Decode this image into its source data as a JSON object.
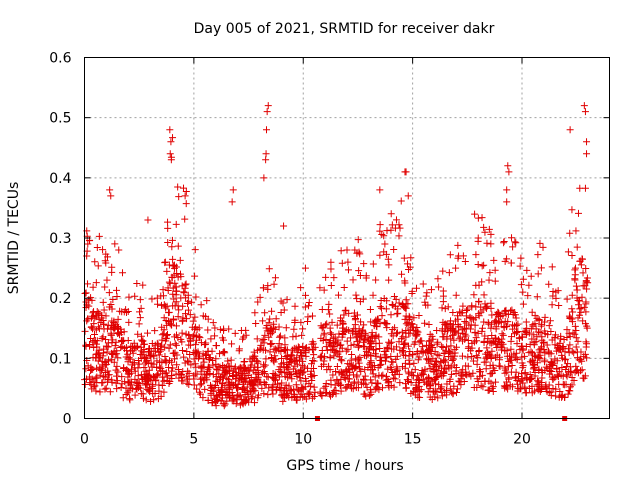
{
  "chart_data": {
    "type": "scatter",
    "title": "Day 005 of 2021, SRMTID for receiver dakr",
    "xlabel": "GPS time / hours",
    "ylabel": "SRMTID / TECUs",
    "xlim": [
      0,
      24
    ],
    "ylim": [
      0,
      0.6
    ],
    "x_ticks": [
      0,
      5,
      10,
      15,
      20
    ],
    "x_tick_labels": [
      "0",
      "5",
      "10",
      "15",
      "20"
    ],
    "y_ticks": [
      0,
      0.1,
      0.2,
      0.3,
      0.4,
      0.5,
      0.6
    ],
    "y_tick_labels": [
      "0",
      "0.1",
      "0.2",
      "0.3",
      "0.4",
      "0.5",
      "0.6"
    ],
    "grid": true,
    "marker": "plus",
    "color": "#e00000",
    "gap_markers": [
      {
        "x": 10.65,
        "y": 0
      },
      {
        "x": 21.95,
        "y": 0
      }
    ],
    "envelope": [
      {
        "x": 0.0,
        "y": 0.15
      },
      {
        "x": 0.5,
        "y": 0.13
      },
      {
        "x": 1.0,
        "y": 0.11
      },
      {
        "x": 1.5,
        "y": 0.12
      },
      {
        "x": 2.0,
        "y": 0.08
      },
      {
        "x": 2.5,
        "y": 0.1
      },
      {
        "x": 3.0,
        "y": 0.08
      },
      {
        "x": 3.5,
        "y": 0.09
      },
      {
        "x": 4.0,
        "y": 0.19
      },
      {
        "x": 4.5,
        "y": 0.17
      },
      {
        "x": 5.0,
        "y": 0.13
      },
      {
        "x": 5.5,
        "y": 0.09
      },
      {
        "x": 6.0,
        "y": 0.06
      },
      {
        "x": 6.5,
        "y": 0.06
      },
      {
        "x": 7.0,
        "y": 0.06
      },
      {
        "x": 7.5,
        "y": 0.07
      },
      {
        "x": 8.0,
        "y": 0.08
      },
      {
        "x": 8.5,
        "y": 0.12
      },
      {
        "x": 9.0,
        "y": 0.08
      },
      {
        "x": 9.5,
        "y": 0.08
      },
      {
        "x": 10.0,
        "y": 0.09
      },
      {
        "x": 10.5,
        "y": 0.09
      },
      {
        "x": 11.0,
        "y": 0.11
      },
      {
        "x": 11.5,
        "y": 0.1
      },
      {
        "x": 12.0,
        "y": 0.13
      },
      {
        "x": 12.5,
        "y": 0.12
      },
      {
        "x": 13.0,
        "y": 0.09
      },
      {
        "x": 13.5,
        "y": 0.13
      },
      {
        "x": 14.0,
        "y": 0.14
      },
      {
        "x": 14.5,
        "y": 0.15
      },
      {
        "x": 15.0,
        "y": 0.11
      },
      {
        "x": 15.5,
        "y": 0.09
      },
      {
        "x": 16.0,
        "y": 0.09
      },
      {
        "x": 16.5,
        "y": 0.11
      },
      {
        "x": 17.0,
        "y": 0.12
      },
      {
        "x": 17.5,
        "y": 0.13
      },
      {
        "x": 18.0,
        "y": 0.14
      },
      {
        "x": 18.5,
        "y": 0.13
      },
      {
        "x": 19.0,
        "y": 0.12
      },
      {
        "x": 19.5,
        "y": 0.13
      },
      {
        "x": 20.0,
        "y": 0.11
      },
      {
        "x": 20.5,
        "y": 0.12
      },
      {
        "x": 21.0,
        "y": 0.12
      },
      {
        "x": 21.5,
        "y": 0.1
      },
      {
        "x": 22.0,
        "y": 0.09
      },
      {
        "x": 22.5,
        "y": 0.2
      },
      {
        "x": 23.0,
        "y": 0.17
      }
    ],
    "points_visible": [
      {
        "x": 3.9,
        "y": 0.48
      },
      {
        "x": 3.95,
        "y": 0.46
      },
      {
        "x": 3.92,
        "y": 0.44
      },
      {
        "x": 3.97,
        "y": 0.43
      },
      {
        "x": 8.4,
        "y": 0.52
      },
      {
        "x": 8.35,
        "y": 0.51
      },
      {
        "x": 8.32,
        "y": 0.48
      },
      {
        "x": 8.3,
        "y": 0.44
      },
      {
        "x": 8.28,
        "y": 0.43
      },
      {
        "x": 8.2,
        "y": 0.4
      },
      {
        "x": 14.7,
        "y": 0.41
      },
      {
        "x": 14.65,
        "y": 0.41
      },
      {
        "x": 19.35,
        "y": 0.42
      },
      {
        "x": 19.4,
        "y": 0.41
      },
      {
        "x": 19.3,
        "y": 0.38
      },
      {
        "x": 19.3,
        "y": 0.36
      },
      {
        "x": 22.2,
        "y": 0.48
      },
      {
        "x": 22.85,
        "y": 0.52
      },
      {
        "x": 22.9,
        "y": 0.51
      },
      {
        "x": 22.95,
        "y": 0.46
      },
      {
        "x": 22.95,
        "y": 0.44
      },
      {
        "x": 1.15,
        "y": 0.38
      },
      {
        "x": 1.2,
        "y": 0.37
      },
      {
        "x": 4.6,
        "y": 0.37
      },
      {
        "x": 6.8,
        "y": 0.38
      },
      {
        "x": 6.75,
        "y": 0.36
      },
      {
        "x": 13.5,
        "y": 0.38
      },
      {
        "x": 14.8,
        "y": 0.37
      },
      {
        "x": 2.9,
        "y": 0.33
      },
      {
        "x": 9.1,
        "y": 0.32
      },
      {
        "x": 0.15,
        "y": 0.29
      },
      {
        "x": 0.1,
        "y": 0.27
      },
      {
        "x": 10.1,
        "y": 0.25
      },
      {
        "x": 12.0,
        "y": 0.28
      },
      {
        "x": 18.0,
        "y": 0.3
      },
      {
        "x": 17.1,
        "y": 0.27
      }
    ]
  }
}
